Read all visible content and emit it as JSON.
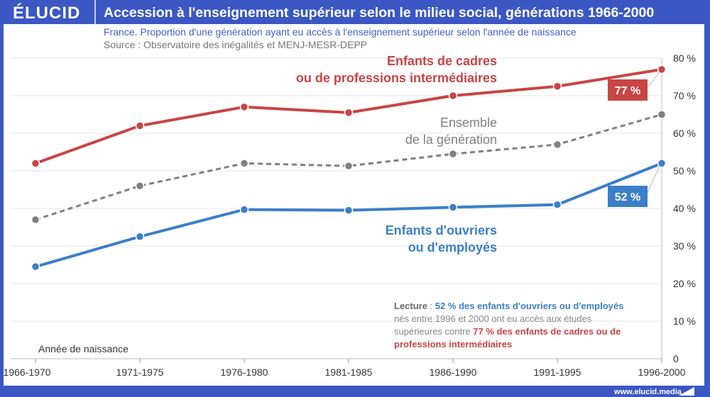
{
  "header": {
    "logo": "ÉLUCID",
    "title": "Accession à l'enseignement supérieur selon le milieu social, générations 1966-2000",
    "subtitle": "France. Proportion d'une génération ayant eu accès à l'enseignement supérieur selon l'année de naissance",
    "source": "Source : Observatoire des inégalités et MENJ-MESR-DEPP"
  },
  "footer": {
    "url": "www.elucid.media"
  },
  "lecture": {
    "label": "Lecture",
    "sep": " : ",
    "blue": "52 % des enfants d'ouvriers ou d'employés",
    "mid": " nés entre 1996 et 2000 ont eu accès aux études supérieures contre ",
    "red": "77 % des enfants de cadres ou de professions intermédiaires"
  },
  "chart_data": {
    "type": "line",
    "title": "Accession à l'enseignement supérieur selon le milieu social, générations 1966-2000",
    "xlabel": "Année de naissance",
    "ylabel": "",
    "categories": [
      "1966-1970",
      "1971-1975",
      "1976-1980",
      "1981-1985",
      "1986-1990",
      "1991-1995",
      "1996-2000"
    ],
    "ylim": [
      0,
      80
    ],
    "yticks": [
      "0",
      "10 %",
      "20 %",
      "30 %",
      "40 %",
      "50 %",
      "60 %",
      "70 %",
      "80 %"
    ],
    "series": [
      {
        "name": "Enfants de cadres ou de professions intermédiaires",
        "label_lines": [
          "Enfants de cadres",
          "ou de professions intermédiaires"
        ],
        "color": "#c84545",
        "dashed": false,
        "values": [
          52,
          62,
          67,
          65.5,
          70,
          72.5,
          77
        ],
        "end_label": "77 %"
      },
      {
        "name": "Ensemble de la génération",
        "label_lines": [
          "Ensemble",
          "de la génération"
        ],
        "color": "#808080",
        "dashed": true,
        "values": [
          37,
          46,
          52,
          51.3,
          54.5,
          57,
          65
        ]
      },
      {
        "name": "Enfants d'ouvriers ou d'employés",
        "label_lines": [
          "Enfants d'ouvriers",
          "ou d'employés"
        ],
        "color": "#3b7fc8",
        "dashed": false,
        "values": [
          24.5,
          32.5,
          39.7,
          39.5,
          40.3,
          41,
          52
        ],
        "end_label": "52 %"
      }
    ]
  }
}
